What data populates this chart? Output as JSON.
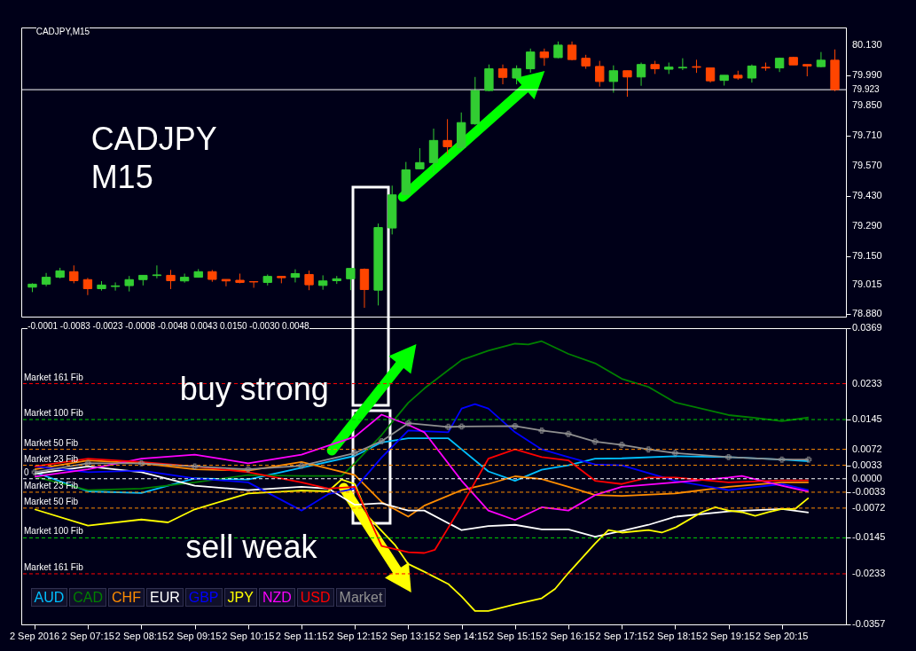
{
  "chart_data": [
    {
      "type": "candlestick",
      "annotations": [
        "CADJPY,M15",
        "CADJPY M15"
      ],
      "categories": [
        null,
        null,
        null,
        null,
        null,
        null,
        null,
        null,
        null,
        null,
        null,
        null,
        null,
        null,
        null,
        null,
        null,
        null,
        null,
        null,
        null,
        null,
        null,
        null,
        null,
        null,
        null,
        null,
        null,
        null,
        null,
        null,
        null,
        null,
        null,
        null,
        null,
        null,
        null,
        null,
        null,
        null,
        null,
        null,
        null,
        null,
        null,
        null,
        null,
        null,
        null,
        null,
        null,
        null,
        null,
        null,
        null,
        null,
        null
      ],
      "ohlc": [
        [
          79.005,
          79.023,
          78.982,
          79.019
        ],
        [
          79.019,
          79.071,
          79.009,
          79.051
        ],
        [
          79.051,
          79.095,
          79.046,
          79.081
        ],
        [
          79.077,
          79.106,
          79.023,
          79.035
        ],
        [
          79.04,
          79.048,
          78.968,
          78.998
        ],
        [
          78.998,
          79.033,
          78.989,
          79.015
        ],
        [
          79.008,
          79.027,
          78.989,
          79.011
        ],
        [
          79.012,
          79.057,
          78.985,
          79.04
        ],
        [
          79.04,
          79.06,
          79.013,
          79.06
        ],
        [
          79.059,
          79.106,
          79.046,
          79.062
        ],
        [
          79.06,
          79.085,
          78.996,
          79.035
        ],
        [
          79.034,
          79.068,
          79.026,
          79.051
        ],
        [
          79.051,
          79.089,
          79.051,
          79.077
        ],
        [
          79.077,
          79.085,
          79.03,
          79.041
        ],
        [
          79.041,
          79.041,
          79.009,
          79.034
        ],
        [
          79.037,
          79.068,
          79.023,
          79.027
        ],
        [
          79.031,
          79.031,
          79.002,
          79.029
        ],
        [
          79.027,
          79.064,
          79.013,
          79.055
        ],
        [
          79.055,
          79.055,
          79.023,
          79.049
        ],
        [
          79.051,
          79.088,
          79.027,
          79.068
        ],
        [
          79.064,
          79.082,
          78.991,
          79.016
        ],
        [
          79.013,
          79.06,
          78.993,
          79.034
        ],
        [
          79.035,
          79.057,
          79.02,
          79.044
        ],
        [
          79.044,
          79.092,
          78.991,
          79.092
        ],
        [
          79.088,
          79.092,
          78.909,
          78.994
        ],
        [
          78.991,
          79.301,
          78.92,
          79.282
        ],
        [
          79.28,
          79.477,
          79.25,
          79.434
        ],
        [
          79.436,
          79.587,
          79.436,
          79.55
        ],
        [
          79.555,
          79.651,
          79.555,
          79.584
        ],
        [
          79.584,
          79.742,
          79.535,
          79.687
        ],
        [
          79.687,
          79.786,
          79.624,
          79.658
        ],
        [
          79.653,
          79.817,
          79.643,
          79.77
        ],
        [
          79.764,
          79.982,
          79.76,
          79.919
        ],
        [
          79.919,
          80.04,
          79.916,
          80.02
        ],
        [
          80.02,
          80.04,
          79.948,
          79.98
        ],
        [
          79.977,
          80.036,
          79.948,
          80.021
        ],
        [
          80.02,
          80.114,
          80.002,
          80.098
        ],
        [
          80.098,
          80.114,
          80.034,
          80.072
        ],
        [
          80.072,
          80.147,
          80.069,
          80.13
        ],
        [
          80.13,
          80.147,
          80.059,
          80.063
        ],
        [
          80.069,
          80.085,
          80.02,
          80.033
        ],
        [
          80.031,
          80.057,
          79.937,
          79.961
        ],
        [
          79.961,
          80.036,
          79.909,
          80.011
        ],
        [
          80.011,
          80.011,
          79.89,
          79.982
        ],
        [
          79.982,
          80.049,
          79.941,
          80.04
        ],
        [
          80.04,
          80.057,
          79.996,
          80.02
        ],
        [
          80.018,
          80.049,
          79.996,
          80.028
        ],
        [
          80.024,
          80.069,
          80.014,
          80.027
        ],
        [
          80.03,
          80.062,
          80.001,
          80.027
        ],
        [
          80.024,
          80.024,
          79.956,
          79.964
        ],
        [
          79.966,
          79.99,
          79.942,
          79.99
        ],
        [
          79.99,
          80.011,
          79.969,
          79.977
        ],
        [
          79.977,
          80.04,
          79.956,
          80.033
        ],
        [
          80.027,
          80.049,
          80.011,
          80.024
        ],
        [
          80.024,
          80.072,
          80.005,
          80.069
        ],
        [
          80.073,
          80.076,
          80.038,
          80.038
        ],
        [
          80.04,
          80.04,
          79.985,
          80.033
        ],
        [
          80.03,
          80.098,
          80.027,
          80.06
        ],
        [
          80.06,
          80.11,
          79.916,
          79.923
        ]
      ],
      "colors": [
        "#32cd32",
        "#32cd32",
        "#32cd32",
        "#ff4500",
        "#ff4500",
        "#32cd32",
        "#32cd32",
        "#32cd32",
        "#32cd32",
        "#32cd32",
        "#ff4500",
        "#32cd32",
        "#32cd32",
        "#ff4500",
        "#ff4500",
        "#ff4500",
        "#ff4500",
        "#32cd32",
        "#ff4500",
        "#32cd32",
        "#ff4500",
        "#32cd32",
        "#32cd32",
        "#32cd32",
        "#ff4500",
        "#32cd32",
        "#32cd32",
        "#32cd32",
        "#32cd32",
        "#32cd32",
        "#ff4500",
        "#32cd32",
        "#32cd32",
        "#32cd32",
        "#ff4500",
        "#32cd32",
        "#32cd32",
        "#ff4500",
        "#32cd32",
        "#ff4500",
        "#ff4500",
        "#ff4500",
        "#32cd32",
        "#ff4500",
        "#32cd32",
        "#ff4500",
        "#32cd32",
        "#32cd32",
        "#ff4500",
        "#ff4500",
        "#32cd32",
        "#ff4500",
        "#32cd32",
        "#ff4500",
        "#32cd32",
        "#ff4500",
        "#ff4500",
        "#32cd32",
        "#ff4500"
      ],
      "ylim": [
        78.868,
        80.212
      ],
      "yticks": [
        {
          "value": 80.13,
          "label": "80.130"
        },
        {
          "value": 79.99,
          "label": "79.990"
        },
        {
          "value": 79.85,
          "label": "79.850"
        },
        {
          "value": 79.71,
          "label": "79.710"
        },
        {
          "value": 79.57,
          "label": "79.570"
        },
        {
          "value": 79.43,
          "label": "79.430"
        },
        {
          "value": 79.29,
          "label": "79.290"
        },
        {
          "value": 79.15,
          "label": "79.150"
        },
        79.015,
        {
          "value": 78.88,
          "label": "78.880"
        }
      ],
      "ref_lines": [
        {
          "axis": "y",
          "value": 79.923,
          "label": "79.923",
          "color": "#ffffff"
        }
      ],
      "tick_labels": "y",
      "grid": false
    },
    {
      "type": "line",
      "annotations": [
        "-0.0001 -0.0083 -0.0023 -0.0008 -0.0048 0.0043 0.0150 -0.0030 0.0048",
        "buy strong",
        "sell weak"
      ],
      "xlim": [
        "2016-09-02T06:00",
        "2016-09-02T21:27"
      ],
      "ylim": [
        -0.0357,
        0.0369
      ],
      "xticks": [
        {
          "value": "2016-09-02T06:15",
          "label": "2 Sep 2016"
        },
        {
          "value": "2016-09-02T07:15",
          "label": "2 Sep 07:15"
        },
        {
          "value": "2016-09-02T08:15",
          "label": "2 Sep 08:15"
        },
        {
          "value": "2016-09-02T09:15",
          "label": "2 Sep 09:15"
        },
        {
          "value": "2016-09-02T10:15",
          "label": "2 Sep 10:15"
        },
        {
          "value": "2016-09-02T11:15",
          "label": "2 Sep 11:15"
        },
        {
          "value": "2016-09-02T12:15",
          "label": "2 Sep 12:15"
        },
        {
          "value": "2016-09-02T13:15",
          "label": "2 Sep 13:15"
        },
        {
          "value": "2016-09-02T14:15",
          "label": "2 Sep 14:15"
        },
        {
          "value": "2016-09-02T15:15",
          "label": "2 Sep 15:15"
        },
        {
          "value": "2016-09-02T16:15",
          "label": "2 Sep 16:15"
        },
        {
          "value": "2016-09-02T17:15",
          "label": "2 Sep 17:15"
        },
        {
          "value": "2016-09-02T18:15",
          "label": "2 Sep 18:15"
        },
        {
          "value": "2016-09-02T19:15",
          "label": "2 Sep 19:15"
        },
        {
          "value": "2016-09-02T20:15",
          "label": "2 Sep 20:15"
        }
      ],
      "yticks": [
        0.0369,
        0.0233,
        0.0145,
        0.0072,
        0.0033,
        {
          "value": 0,
          "label": "0.0000"
        },
        -0.0033,
        -0.0072,
        -0.0145,
        -0.0233,
        -0.0357
      ],
      "ref_lines": [
        {
          "axis": "y",
          "value": 0.0233,
          "label": "Market 161 Fib",
          "color": "#ff0000",
          "line_style": "dashed"
        },
        {
          "axis": "y",
          "value": 0.0145,
          "label": "Market 100 Fib",
          "color": "#00cc00",
          "line_style": "dashed"
        },
        {
          "axis": "y",
          "value": 0.0072,
          "label": "Market 50 Fib",
          "color": "#ff8c00",
          "line_style": "dashed"
        },
        {
          "axis": "y",
          "value": 0.0033,
          "label": "Market 23 Fib",
          "color": "#ff8c00",
          "line_style": "dashed"
        },
        {
          "axis": "y",
          "value": 0,
          "label": "0",
          "color": "#ffffff",
          "line_style": "dashed"
        },
        {
          "axis": "y",
          "value": -0.0033,
          "label": "Market 23 Fib",
          "color": "#ff8c00",
          "line_style": "dashed"
        },
        {
          "axis": "y",
          "value": -0.0072,
          "label": "Market 50 Fib",
          "color": "#ff8c00",
          "line_style": "dashed"
        },
        {
          "axis": "y",
          "value": -0.0145,
          "label": "Market 100 Fib",
          "color": "#00cc00",
          "line_style": "dashed"
        },
        {
          "axis": "y",
          "value": -0.0233,
          "label": "Market 161 Fib",
          "color": "#ff0000",
          "line_style": "dashed"
        }
      ],
      "legend": "bottom left",
      "grid": false,
      "series": [
        {
          "name": "AUD",
          "color": "#00bfff",
          "x": [
            "2016-09-02T06:15",
            "2016-09-02T07:15",
            "2016-09-02T08:15",
            "2016-09-02T09:15",
            "2016-09-02T10:15",
            "2016-09-02T11:15",
            "2016-09-02T12:15",
            "2016-09-02T12:45",
            "2016-09-02T13:15",
            "2016-09-02T14:00",
            "2016-09-02T14:15",
            "2016-09-02T14:45",
            "2016-09-02T15:15",
            "2016-09-02T15:45",
            "2016-09-02T16:15",
            "2016-09-02T16:45",
            "2016-09-02T17:15",
            "2016-09-02T18:15",
            "2016-09-02T19:15",
            "2016-09-02T20:15",
            "2016-09-02T20:45"
          ],
          "values": [
            0.0016,
            -0.0031,
            -0.0035,
            0.0001,
            -0.0002,
            0.0027,
            0.0056,
            0.0089,
            0.0099,
            0.0099,
            0.0072,
            0.0018,
            -0.0005,
            0.0022,
            0.0033,
            0.0049,
            0.005,
            0.0055,
            0.0053,
            0.0047,
            0.0043
          ]
        },
        {
          "name": "CAD",
          "color": "#008000",
          "x": [
            "2016-09-02T06:15",
            "2016-09-02T07:15",
            "2016-09-02T08:15",
            "2016-09-02T09:15",
            "2016-09-02T10:15",
            "2016-09-02T11:15",
            "2016-09-02T12:00",
            "2016-09-02T12:15",
            "2016-09-02T12:45",
            "2016-09-02T13:15",
            "2016-09-02T13:33",
            "2016-09-02T14:15",
            "2016-09-02T14:45",
            "2016-09-02T15:15",
            "2016-09-02T15:30",
            "2016-09-02T15:45",
            "2016-09-02T16:15",
            "2016-09-02T16:45",
            "2016-09-02T17:15",
            "2016-09-02T17:45",
            "2016-09-02T18:15",
            "2016-09-02T19:15",
            "2016-09-02T19:45",
            "2016-09-02T20:15",
            "2016-09-02T20:45"
          ],
          "values": [
            0.0005,
            -0.0028,
            -0.0024,
            -0.0009,
            0.0009,
            0.0007,
            0.0007,
            0.0038,
            0.0107,
            0.0186,
            0.0221,
            0.0291,
            0.0314,
            0.0331,
            0.0329,
            0.0337,
            0.0306,
            0.0283,
            0.0245,
            0.0225,
            0.0187,
            0.0156,
            0.0149,
            0.0141,
            0.015
          ]
        },
        {
          "name": "CHF",
          "color": "#ff8c00",
          "x": [
            "2016-09-02T06:15",
            "2016-09-02T07:15",
            "2016-09-02T08:15",
            "2016-09-02T09:15",
            "2016-09-02T10:15",
            "2016-09-02T11:15",
            "2016-09-02T12:15",
            "2016-09-02T12:45",
            "2016-09-02T13:15",
            "2016-09-02T13:33",
            "2016-09-02T14:15",
            "2016-09-02T14:45",
            "2016-09-02T15:15",
            "2016-09-02T15:45",
            "2016-09-02T16:15",
            "2016-09-02T16:45",
            "2016-09-02T17:15",
            "2016-09-02T18:15",
            "2016-09-02T19:15",
            "2016-09-02T20:15",
            "2016-09-02T20:45"
          ],
          "values": [
            0.0023,
            0.0045,
            0.0038,
            0.0023,
            0.002,
            0.0041,
            0.0009,
            -0.0057,
            -0.0093,
            -0.0066,
            -0.0028,
            -0.0013,
            0.0006,
            -0.0001,
            -0.002,
            -0.004,
            -0.0042,
            -0.0036,
            -0.002,
            -0.0009,
            -0.0009
          ]
        },
        {
          "name": "EUR",
          "color": "#ffffff",
          "x": [
            "2016-09-02T06:15",
            "2016-09-02T07:15",
            "2016-09-02T08:15",
            "2016-09-02T09:15",
            "2016-09-02T10:15",
            "2016-09-02T11:15",
            "2016-09-02T11:45",
            "2016-09-02T12:15",
            "2016-09-02T12:45",
            "2016-09-02T13:15",
            "2016-09-02T13:33",
            "2016-09-02T14:15",
            "2016-09-02T14:45",
            "2016-09-02T15:15",
            "2016-09-02T15:45",
            "2016-09-02T16:15",
            "2016-09-02T16:45",
            "2016-09-02T17:15",
            "2016-09-02T17:45",
            "2016-09-02T18:15",
            "2016-09-02T19:15",
            "2016-09-02T20:15",
            "2016-09-02T20:45"
          ],
          "values": [
            0.0012,
            0.003,
            0.0016,
            -0.0017,
            -0.0028,
            -0.002,
            -0.0024,
            -0.0064,
            -0.006,
            -0.0078,
            -0.0078,
            -0.0126,
            -0.0116,
            -0.0113,
            -0.0124,
            -0.0124,
            -0.0142,
            -0.0128,
            -0.0113,
            -0.0093,
            -0.008,
            -0.0074,
            -0.0083
          ]
        },
        {
          "name": "GBP",
          "color": "#0000ff",
          "x": [
            "2016-09-02T06:15",
            "2016-09-02T07:15",
            "2016-09-02T08:15",
            "2016-09-02T09:15",
            "2016-09-02T10:15",
            "2016-09-02T11:15",
            "2016-09-02T11:45",
            "2016-09-02T12:15",
            "2016-09-02T12:45",
            "2016-09-02T13:15",
            "2016-09-02T14:00",
            "2016-09-02T14:15",
            "2016-09-02T14:30",
            "2016-09-02T14:45",
            "2016-09-02T15:15",
            "2016-09-02T15:45",
            "2016-09-02T16:15",
            "2016-09-02T16:45",
            "2016-09-02T17:15",
            "2016-09-02T17:45",
            "2016-09-02T18:15",
            "2016-09-02T19:15",
            "2016-09-02T20:15",
            "2016-09-02T20:45"
          ],
          "values": [
            0.003,
            0.0016,
            0.002,
            0.0001,
            -0.0009,
            -0.0078,
            -0.0038,
            -0.0024,
            0.0052,
            0.0118,
            0.0114,
            0.0172,
            0.0183,
            0.0172,
            0.0114,
            0.0072,
            0.0053,
            0.0035,
            0.0033,
            0.0014,
            -0.0005,
            -0.0028,
            -0.0013,
            -0.0028
          ]
        },
        {
          "name": "JPY",
          "color": "#ffff00",
          "x": [
            "2016-09-02T06:15",
            "2016-09-02T07:15",
            "2016-09-02T08:15",
            "2016-09-02T08:45",
            "2016-09-02T09:15",
            "2016-09-02T10:15",
            "2016-09-02T11:15",
            "2016-09-02T11:45",
            "2016-09-02T12:00",
            "2016-09-02T12:15",
            "2016-09-02T12:30",
            "2016-09-02T13:00",
            "2016-09-02T13:15",
            "2016-09-02T13:33",
            "2016-09-02T14:00",
            "2016-09-02T14:15",
            "2016-09-02T14:30",
            "2016-09-02T14:45",
            "2016-09-02T15:15",
            "2016-09-02T15:45",
            "2016-09-02T16:00",
            "2016-09-02T16:15",
            "2016-09-02T16:45",
            "2016-09-02T17:00",
            "2016-09-02T17:15",
            "2016-09-02T17:45",
            "2016-09-02T18:00",
            "2016-09-02T18:15",
            "2016-09-02T18:45",
            "2016-09-02T19:00",
            "2016-09-02T19:15",
            "2016-09-02T19:30",
            "2016-09-02T19:45",
            "2016-09-02T20:00",
            "2016-09-02T20:15",
            "2016-09-02T20:30",
            "2016-09-02T20:45"
          ],
          "values": [
            -0.0075,
            -0.0115,
            -0.01,
            -0.0107,
            -0.0075,
            -0.0036,
            -0.0029,
            -0.0031,
            -0.0002,
            -0.0013,
            -0.0093,
            -0.0162,
            -0.0209,
            -0.0228,
            -0.0258,
            -0.0289,
            -0.0324,
            -0.0324,
            -0.0308,
            -0.0293,
            -0.027,
            -0.0231,
            -0.0159,
            -0.0126,
            -0.0132,
            -0.0126,
            -0.0132,
            -0.012,
            -0.0082,
            -0.007,
            -0.0078,
            -0.0082,
            -0.0091,
            -0.0082,
            -0.0074,
            -0.0074,
            -0.0047
          ]
        },
        {
          "name": "NZD",
          "color": "#ff00ff",
          "x": [
            "2016-09-02T06:15",
            "2016-09-02T07:15",
            "2016-09-02T08:15",
            "2016-09-02T09:15",
            "2016-09-02T10:15",
            "2016-09-02T11:15",
            "2016-09-02T12:15",
            "2016-09-02T12:45",
            "2016-09-02T13:15",
            "2016-09-02T13:33",
            "2016-09-02T14:15",
            "2016-09-02T14:45",
            "2016-09-02T15:15",
            "2016-09-02T15:45",
            "2016-09-02T16:15",
            "2016-09-02T16:45",
            "2016-09-02T17:15",
            "2016-09-02T18:15",
            "2016-09-02T19:15",
            "2016-09-02T19:30",
            "2016-09-02T20:15",
            "2016-09-02T20:45"
          ],
          "values": [
            0.0005,
            0.0023,
            0.0049,
            0.0059,
            0.0038,
            0.0059,
            0.0103,
            0.0157,
            0.0132,
            0.0114,
            -0.0005,
            -0.0078,
            -0.0101,
            -0.007,
            -0.0078,
            -0.004,
            -0.002,
            -0.0009,
            0.0003,
            0.0007,
            -0.0017,
            -0.0032
          ]
        },
        {
          "name": "USD",
          "color": "#ff0000",
          "x": [
            "2016-09-02T06:15",
            "2016-09-02T07:15",
            "2016-09-02T08:15",
            "2016-09-02T09:15",
            "2016-09-02T10:15",
            "2016-09-02T11:15",
            "2016-09-02T11:45",
            "2016-09-02T12:15",
            "2016-09-02T12:45",
            "2016-09-02T13:15",
            "2016-09-02T13:33",
            "2016-09-02T13:45",
            "2016-09-02T14:15",
            "2016-09-02T14:45",
            "2016-09-02T15:15",
            "2016-09-02T15:45",
            "2016-09-02T16:15",
            "2016-09-02T16:45",
            "2016-09-02T17:15",
            "2016-09-02T17:45",
            "2016-09-02T18:15",
            "2016-09-02T19:15",
            "2016-09-02T20:15",
            "2016-09-02T20:45"
          ],
          "values": [
            0.003,
            0.0049,
            0.0041,
            0.003,
            0.0016,
            -0.0009,
            -0.0024,
            -0.002,
            -0.0165,
            -0.018,
            -0.0182,
            -0.0174,
            -0.0066,
            0.0049,
            0.0072,
            0.0053,
            0.0045,
            -0.0005,
            -0.0013,
            0.0003,
            0.0003,
            -0.0009,
            -0.0004,
            -0.0004
          ]
        },
        {
          "name": "Market",
          "color": "#909090",
          "marker": "cross",
          "x": [
            "2016-09-02T06:15",
            "2016-09-02T07:15",
            "2016-09-02T08:15",
            "2016-09-02T09:15",
            "2016-09-02T10:15",
            "2016-09-02T11:15",
            "2016-09-02T12:15",
            "2016-09-02T12:45",
            "2016-09-02T13:15",
            "2016-09-02T14:00",
            "2016-09-02T14:15",
            "2016-09-02T15:15",
            "2016-09-02T15:45",
            "2016-09-02T16:15",
            "2016-09-02T16:45",
            "2016-09-02T17:15",
            "2016-09-02T17:45",
            "2016-09-02T18:15",
            "2016-09-02T19:15",
            "2016-09-02T20:15",
            "2016-09-02T20:45"
          ],
          "values": [
            0.0016,
            0.0038,
            0.0038,
            0.003,
            0.0023,
            0.0032,
            0.0063,
            0.0092,
            0.0136,
            0.0127,
            0.0128,
            0.0129,
            0.0118,
            0.011,
            0.0091,
            0.0083,
            0.0072,
            0.0063,
            0.0053,
            0.0047,
            0.0047
          ]
        }
      ]
    }
  ]
}
